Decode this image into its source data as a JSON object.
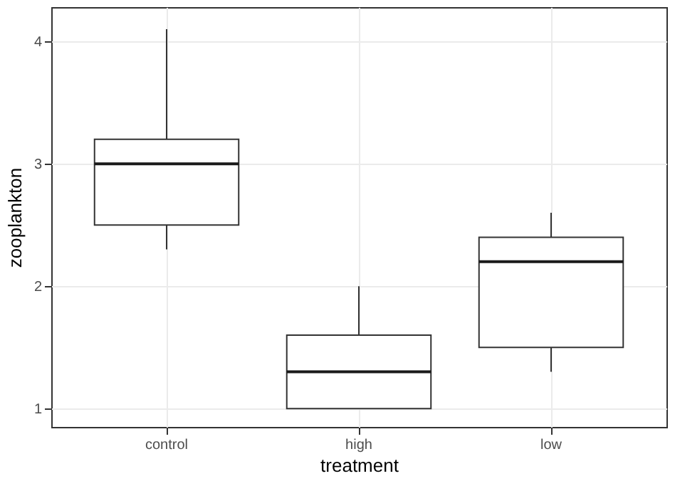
{
  "chart_data": {
    "type": "box",
    "xlabel": "treatment",
    "ylabel": "zooplankton",
    "categories": [
      "control",
      "high",
      "low"
    ],
    "boxes": [
      {
        "low": 2.3,
        "q1": 2.5,
        "median": 3.0,
        "q3": 3.2,
        "high": 4.1
      },
      {
        "low": 1.0,
        "q1": 1.0,
        "median": 1.3,
        "q3": 1.6,
        "high": 2.0
      },
      {
        "low": 1.3,
        "q1": 1.5,
        "median": 2.2,
        "q3": 2.4,
        "high": 2.6
      }
    ],
    "ylim": [
      0.85,
      4.28
    ],
    "yticks": [
      1,
      2,
      3,
      4
    ],
    "grid": true
  }
}
